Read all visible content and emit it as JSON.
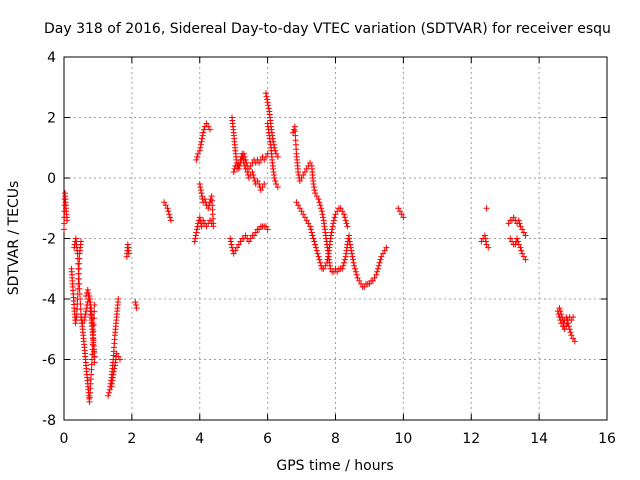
{
  "chart_data": {
    "type": "scatter",
    "title": "Day 318 of 2016, Sidereal Day-to-day VTEC variation (SDTVAR) for receiver esqu",
    "xlabel": "GPS time / hours",
    "ylabel": "SDTVAR / TECUs",
    "xlim": [
      0,
      16
    ],
    "ylim": [
      -8,
      4
    ],
    "xticks": [
      "0",
      "2",
      "4",
      "6",
      "8",
      "10",
      "12",
      "14",
      "16"
    ],
    "yticks": [
      "-8",
      "-6",
      "-4",
      "-2",
      "0",
      "2",
      "4"
    ],
    "marker": "+",
    "color": "#ff0000",
    "grid": true,
    "series": [
      {
        "name": "SDTVAR",
        "segments": [
          {
            "x": [
              0.0,
              0.03,
              0.06,
              0.09
            ],
            "y": [
              -1.7,
              -0.5,
              -1.0,
              -1.4
            ]
          },
          {
            "x": [
              0.22,
              0.26,
              0.3,
              0.34,
              0.38,
              0.42,
              0.46,
              0.5
            ],
            "y": [
              -3.0,
              -3.6,
              -4.3,
              -4.8,
              -4.5,
              -3.5,
              -2.5,
              -2.1
            ]
          },
          {
            "x": [
              0.3,
              0.35,
              0.4,
              0.45,
              0.5,
              0.55,
              0.6,
              0.65,
              0.7,
              0.75,
              0.8,
              0.85,
              0.9
            ],
            "y": [
              -2.3,
              -2.0,
              -2.5,
              -3.5,
              -4.5,
              -5.0,
              -5.6,
              -6.2,
              -6.8,
              -7.4,
              -6.5,
              -5.5,
              -4.2
            ]
          },
          {
            "x": [
              0.5,
              0.55,
              0.6,
              0.65,
              0.7,
              0.75,
              0.8,
              0.85,
              0.9
            ],
            "y": [
              -4.6,
              -4.8,
              -4.7,
              -4.4,
              -4.1,
              -3.9,
              -4.3,
              -5.0,
              -6.1
            ]
          },
          {
            "x": [
              0.65,
              0.7,
              0.75,
              0.8,
              0.85,
              0.9
            ],
            "y": [
              -3.9,
              -3.7,
              -4.0,
              -4.6,
              -5.2,
              -5.9
            ]
          },
          {
            "x": [
              1.3,
              1.35,
              1.4,
              1.45,
              1.5,
              1.55,
              1.6
            ],
            "y": [
              -7.2,
              -7.0,
              -6.6,
              -6.0,
              -5.2,
              -4.6,
              -4.0
            ]
          },
          {
            "x": [
              1.4,
              1.45,
              1.5,
              1.55,
              1.6,
              1.65
            ],
            "y": [
              -6.9,
              -6.5,
              -6.2,
              -5.8,
              -5.9,
              -6.0
            ]
          },
          {
            "x": [
              1.85,
              1.88,
              1.91
            ],
            "y": [
              -2.6,
              -2.2,
              -2.5
            ]
          },
          {
            "x": [
              2.1,
              2.14
            ],
            "y": [
              -4.1,
              -4.3
            ]
          },
          {
            "x": [
              2.95,
              3.0,
              3.05,
              3.1,
              3.15
            ],
            "y": [
              -0.8,
              -0.9,
              -1.0,
              -1.2,
              -1.4
            ]
          },
          {
            "x": [
              3.85,
              3.9,
              3.95,
              4.0,
              4.05,
              4.1
            ],
            "y": [
              -2.1,
              -1.8,
              -1.5,
              -1.3,
              -1.6,
              -1.5
            ]
          },
          {
            "x": [
              3.9,
              3.95,
              4.0,
              4.05,
              4.1,
              4.15,
              4.2,
              4.25,
              4.3
            ],
            "y": [
              0.6,
              0.8,
              0.9,
              1.2,
              1.5,
              1.7,
              1.8,
              1.7,
              1.6
            ]
          },
          {
            "x": [
              4.0,
              4.05,
              4.1,
              4.15,
              4.2,
              4.25,
              4.3,
              4.35,
              4.4
            ],
            "y": [
              -0.2,
              -0.5,
              -0.8,
              -0.7,
              -0.9,
              -1.0,
              -0.8,
              -0.6,
              -1.5
            ]
          },
          {
            "x": [
              4.1,
              4.15,
              4.2,
              4.25,
              4.3,
              4.35,
              4.4
            ],
            "y": [
              -1.4,
              -1.5,
              -1.6,
              -1.5,
              -1.4,
              -1.5,
              -1.6
            ]
          },
          {
            "x": [
              4.9,
              4.95,
              5.0,
              5.05,
              5.1,
              5.15,
              5.2,
              5.25,
              5.3,
              5.35,
              5.4,
              5.45,
              5.5,
              5.55,
              5.6,
              5.65,
              5.7,
              5.75,
              5.8,
              5.85,
              5.9,
              5.95,
              6.0
            ],
            "y": [
              -2.0,
              -2.3,
              -2.5,
              -2.4,
              -2.3,
              -2.2,
              -2.1,
              -2.0,
              -2.0,
              -1.9,
              -2.0,
              -2.1,
              -2.0,
              -1.9,
              -1.9,
              -1.8,
              -1.7,
              -1.7,
              -1.6,
              -1.6,
              -1.6,
              -1.6,
              -1.7
            ]
          },
          {
            "x": [
              4.95,
              5.0,
              5.05,
              5.1,
              5.15,
              5.2,
              5.25,
              5.3,
              5.35,
              5.4,
              5.45,
              5.5,
              5.55,
              5.6,
              5.65,
              5.7,
              5.75,
              5.8,
              5.85,
              5.9,
              5.95,
              6.0
            ],
            "y": [
              2.0,
              1.5,
              0.9,
              0.4,
              0.3,
              0.5,
              0.7,
              0.8,
              0.6,
              0.4,
              0.3,
              0.4,
              0.5,
              0.6,
              0.5,
              0.6,
              0.5,
              0.6,
              0.7,
              0.6,
              0.7,
              0.8
            ]
          },
          {
            "x": [
              5.0,
              5.05,
              5.1,
              5.15,
              5.2,
              5.25,
              5.3,
              5.35,
              5.4,
              5.45,
              5.5,
              5.55,
              5.6,
              5.65,
              5.7,
              5.75,
              5.8,
              5.85,
              5.9
            ],
            "y": [
              0.2,
              0.4,
              0.3,
              0.5,
              0.6,
              0.8,
              0.5,
              0.3,
              0.2,
              0.0,
              0.1,
              0.2,
              0.0,
              -0.2,
              -0.1,
              -0.2,
              -0.4,
              -0.3,
              -0.2
            ]
          },
          {
            "x": [
              5.95,
              6.0,
              6.05,
              6.1,
              6.15,
              6.2,
              6.25,
              6.3
            ],
            "y": [
              2.8,
              2.5,
              2.2,
              1.7,
              1.3,
              1.0,
              0.8,
              0.7
            ]
          },
          {
            "x": [
              6.0,
              6.05,
              6.1,
              6.15,
              6.2,
              6.25,
              6.3
            ],
            "y": [
              1.8,
              1.4,
              1.0,
              0.4,
              0.0,
              -0.2,
              -0.3
            ]
          },
          {
            "x": [
              6.75,
              6.8,
              6.85,
              6.9,
              6.95,
              7.0,
              7.05,
              7.1,
              7.15,
              7.2,
              7.25,
              7.3,
              7.35,
              7.4,
              7.45,
              7.5,
              7.55,
              7.6,
              7.65,
              7.7,
              7.75,
              7.8,
              7.85,
              7.9,
              7.95,
              8.0,
              8.05,
              8.1,
              8.15,
              8.2,
              8.25,
              8.3,
              8.35,
              8.4
            ],
            "y": [
              1.5,
              1.7,
              0.8,
              0.2,
              -0.1,
              0.0,
              0.1,
              0.2,
              0.3,
              0.4,
              0.5,
              0.4,
              -0.2,
              -0.5,
              -0.6,
              -0.7,
              -0.9,
              -1.1,
              -1.4,
              -1.8,
              -2.2,
              -2.6,
              -3.0,
              -3.1,
              -3.1,
              -3.0,
              -3.1,
              -3.0,
              -3.0,
              -3.0,
              -2.8,
              -2.6,
              -2.2,
              -1.9
            ]
          },
          {
            "x": [
              6.85,
              6.9,
              6.95,
              7.0,
              7.05,
              7.1,
              7.15,
              7.2,
              7.25,
              7.3,
              7.35,
              7.4,
              7.45,
              7.5,
              7.55,
              7.6,
              7.65,
              7.7,
              7.75,
              7.8,
              7.85,
              7.9,
              7.95,
              8.0,
              8.05,
              8.1,
              8.15,
              8.2,
              8.25,
              8.3,
              8.35
            ],
            "y": [
              -0.8,
              -0.9,
              -1.0,
              -1.1,
              -1.2,
              -1.3,
              -1.4,
              -1.5,
              -1.6,
              -1.8,
              -2.0,
              -2.2,
              -2.4,
              -2.6,
              -2.8,
              -3.0,
              -3.0,
              -2.9,
              -2.8,
              -2.5,
              -2.0,
              -1.7,
              -1.4,
              -1.2,
              -1.1,
              -1.0,
              -1.0,
              -1.1,
              -1.2,
              -1.4,
              -1.6
            ]
          },
          {
            "x": [
              8.4,
              8.45,
              8.5,
              8.55,
              8.6,
              8.65,
              8.7,
              8.75,
              8.8,
              8.85,
              8.9,
              8.95,
              9.0,
              9.05,
              9.1,
              9.15,
              9.2,
              9.25,
              9.3,
              9.35,
              9.4,
              9.45,
              9.5
            ],
            "y": [
              -2.0,
              -2.3,
              -2.6,
              -2.9,
              -3.1,
              -3.3,
              -3.4,
              -3.5,
              -3.6,
              -3.6,
              -3.5,
              -3.5,
              -3.5,
              -3.4,
              -3.4,
              -3.3,
              -3.2,
              -3.0,
              -2.8,
              -2.6,
              -2.5,
              -2.4,
              -2.3
            ]
          },
          {
            "x": [
              9.85,
              9.9,
              9.95,
              10.0
            ],
            "y": [
              -1.0,
              -1.1,
              -1.2,
              -1.3
            ]
          },
          {
            "x": [
              12.3,
              12.35,
              12.4,
              12.45,
              12.5
            ],
            "y": [
              -2.1,
              -2.0,
              -1.9,
              -2.2,
              -2.3
            ]
          },
          {
            "x": [
              12.45
            ],
            "y": [
              -1.0
            ]
          },
          {
            "x": [
              13.1,
              13.15,
              13.2,
              13.25,
              13.3,
              13.35,
              13.4,
              13.45,
              13.5,
              13.55,
              13.6
            ],
            "y": [
              -1.5,
              -1.4,
              -1.4,
              -1.3,
              -1.4,
              -1.5,
              -1.4,
              -1.6,
              -1.7,
              -1.8,
              -1.9
            ]
          },
          {
            "x": [
              13.15,
              13.2,
              13.25,
              13.3,
              13.35,
              13.4,
              13.45,
              13.5,
              13.55,
              13.6
            ],
            "y": [
              -2.0,
              -2.1,
              -2.2,
              -2.2,
              -2.0,
              -2.2,
              -2.3,
              -2.5,
              -2.6,
              -2.7
            ]
          },
          {
            "x": [
              14.55,
              14.6,
              14.65,
              14.7,
              14.75,
              14.8,
              14.85,
              14.9,
              14.95,
              15.0,
              15.05
            ],
            "y": [
              -4.4,
              -4.6,
              -4.8,
              -4.9,
              -4.7,
              -4.6,
              -4.8,
              -5.0,
              -5.2,
              -5.3,
              -5.4
            ]
          },
          {
            "x": [
              14.6,
              14.65,
              14.7,
              14.75,
              14.8,
              14.85,
              14.9,
              14.95,
              15.0
            ],
            "y": [
              -4.3,
              -4.5,
              -4.7,
              -5.0,
              -4.9,
              -4.7,
              -4.6,
              -4.7,
              -4.6
            ]
          }
        ]
      }
    ]
  }
}
